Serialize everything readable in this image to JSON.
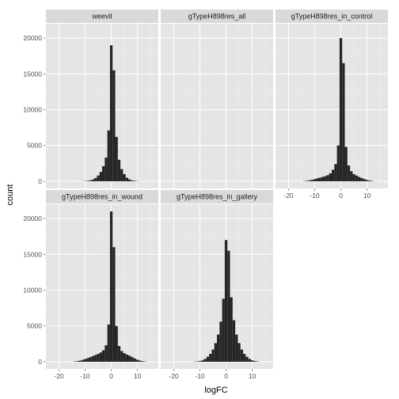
{
  "chart_data": {
    "type": "histogram",
    "xlabel": "logFC",
    "ylabel": "count",
    "xlim": [
      -25,
      18
    ],
    "ylim": [
      -1000,
      22000
    ],
    "x_ticks": [
      -20,
      -10,
      0,
      10
    ],
    "y_ticks": [
      0,
      5000,
      10000,
      15000,
      20000
    ],
    "bin_width": 1,
    "grid": true,
    "facet_layout": {
      "ncol": 3,
      "nrow": 2
    },
    "bar_color": "#262626",
    "panel_background": "#e5e5e5",
    "strip_background": "#d9d9d9",
    "panels": [
      {
        "label": "weevil",
        "bins": [
          {
            "x": -11,
            "count": 10
          },
          {
            "x": -10,
            "count": 30
          },
          {
            "x": -9,
            "count": 60
          },
          {
            "x": -8,
            "count": 120
          },
          {
            "x": -7,
            "count": 250
          },
          {
            "x": -6,
            "count": 450
          },
          {
            "x": -5,
            "count": 800
          },
          {
            "x": -4,
            "count": 1300
          },
          {
            "x": -3,
            "count": 2100
          },
          {
            "x": -2,
            "count": 3300
          },
          {
            "x": -1,
            "count": 7100
          },
          {
            "x": 0,
            "count": 19000
          },
          {
            "x": 1,
            "count": 15500
          },
          {
            "x": 2,
            "count": 6200
          },
          {
            "x": 3,
            "count": 3000
          },
          {
            "x": 4,
            "count": 1700
          },
          {
            "x": 5,
            "count": 1000
          },
          {
            "x": 6,
            "count": 500
          },
          {
            "x": 7,
            "count": 250
          },
          {
            "x": 8,
            "count": 120
          },
          {
            "x": 9,
            "count": 60
          },
          {
            "x": 10,
            "count": 25
          }
        ]
      },
      {
        "label": "gTypeH898res_all",
        "bins": []
      },
      {
        "label": "gTypeH898res_in_control",
        "bins": [
          {
            "x": -14,
            "count": 30
          },
          {
            "x": -13,
            "count": 60
          },
          {
            "x": -12,
            "count": 120
          },
          {
            "x": -11,
            "count": 200
          },
          {
            "x": -10,
            "count": 300
          },
          {
            "x": -9,
            "count": 400
          },
          {
            "x": -8,
            "count": 500
          },
          {
            "x": -7,
            "count": 600
          },
          {
            "x": -6,
            "count": 700
          },
          {
            "x": -5,
            "count": 850
          },
          {
            "x": -4,
            "count": 1100
          },
          {
            "x": -3,
            "count": 1600
          },
          {
            "x": -2,
            "count": 2400
          },
          {
            "x": -1,
            "count": 5000
          },
          {
            "x": 0,
            "count": 20000
          },
          {
            "x": 1,
            "count": 16500
          },
          {
            "x": 2,
            "count": 4800
          },
          {
            "x": 3,
            "count": 2200
          },
          {
            "x": 4,
            "count": 1400
          },
          {
            "x": 5,
            "count": 1000
          },
          {
            "x": 6,
            "count": 800
          },
          {
            "x": 7,
            "count": 600
          },
          {
            "x": 8,
            "count": 450
          },
          {
            "x": 9,
            "count": 300
          },
          {
            "x": 10,
            "count": 180
          },
          {
            "x": 11,
            "count": 100
          },
          {
            "x": 12,
            "count": 50
          }
        ]
      },
      {
        "label": "gTypeH898res_in_wound",
        "bins": [
          {
            "x": -14,
            "count": 40
          },
          {
            "x": -13,
            "count": 80
          },
          {
            "x": -12,
            "count": 150
          },
          {
            "x": -11,
            "count": 250
          },
          {
            "x": -10,
            "count": 380
          },
          {
            "x": -9,
            "count": 500
          },
          {
            "x": -8,
            "count": 650
          },
          {
            "x": -7,
            "count": 800
          },
          {
            "x": -6,
            "count": 950
          },
          {
            "x": -5,
            "count": 1100
          },
          {
            "x": -4,
            "count": 1300
          },
          {
            "x": -3,
            "count": 1600
          },
          {
            "x": -2,
            "count": 2300
          },
          {
            "x": -1,
            "count": 5200
          },
          {
            "x": 0,
            "count": 21000
          },
          {
            "x": 1,
            "count": 16000
          },
          {
            "x": 2,
            "count": 5000
          },
          {
            "x": 3,
            "count": 2200
          },
          {
            "x": 4,
            "count": 1500
          },
          {
            "x": 5,
            "count": 1200
          },
          {
            "x": 6,
            "count": 1000
          },
          {
            "x": 7,
            "count": 850
          },
          {
            "x": 8,
            "count": 650
          },
          {
            "x": 9,
            "count": 450
          },
          {
            "x": 10,
            "count": 280
          },
          {
            "x": 11,
            "count": 160
          },
          {
            "x": 12,
            "count": 80
          },
          {
            "x": 13,
            "count": 40
          }
        ]
      },
      {
        "label": "gTypeH898res_in_gallery",
        "bins": [
          {
            "x": -12,
            "count": 20
          },
          {
            "x": -11,
            "count": 50
          },
          {
            "x": -10,
            "count": 100
          },
          {
            "x": -9,
            "count": 200
          },
          {
            "x": -8,
            "count": 400
          },
          {
            "x": -7,
            "count": 700
          },
          {
            "x": -6,
            "count": 1100
          },
          {
            "x": -5,
            "count": 1700
          },
          {
            "x": -4,
            "count": 2600
          },
          {
            "x": -3,
            "count": 3800
          },
          {
            "x": -2,
            "count": 5600
          },
          {
            "x": -1,
            "count": 8800
          },
          {
            "x": 0,
            "count": 17000
          },
          {
            "x": 1,
            "count": 15500
          },
          {
            "x": 2,
            "count": 9000
          },
          {
            "x": 3,
            "count": 5800
          },
          {
            "x": 4,
            "count": 3800
          },
          {
            "x": 5,
            "count": 2600
          },
          {
            "x": 6,
            "count": 1700
          },
          {
            "x": 7,
            "count": 1100
          },
          {
            "x": 8,
            "count": 700
          },
          {
            "x": 9,
            "count": 400
          },
          {
            "x": 10,
            "count": 200
          },
          {
            "x": 11,
            "count": 100
          },
          {
            "x": 12,
            "count": 50
          }
        ]
      }
    ]
  }
}
